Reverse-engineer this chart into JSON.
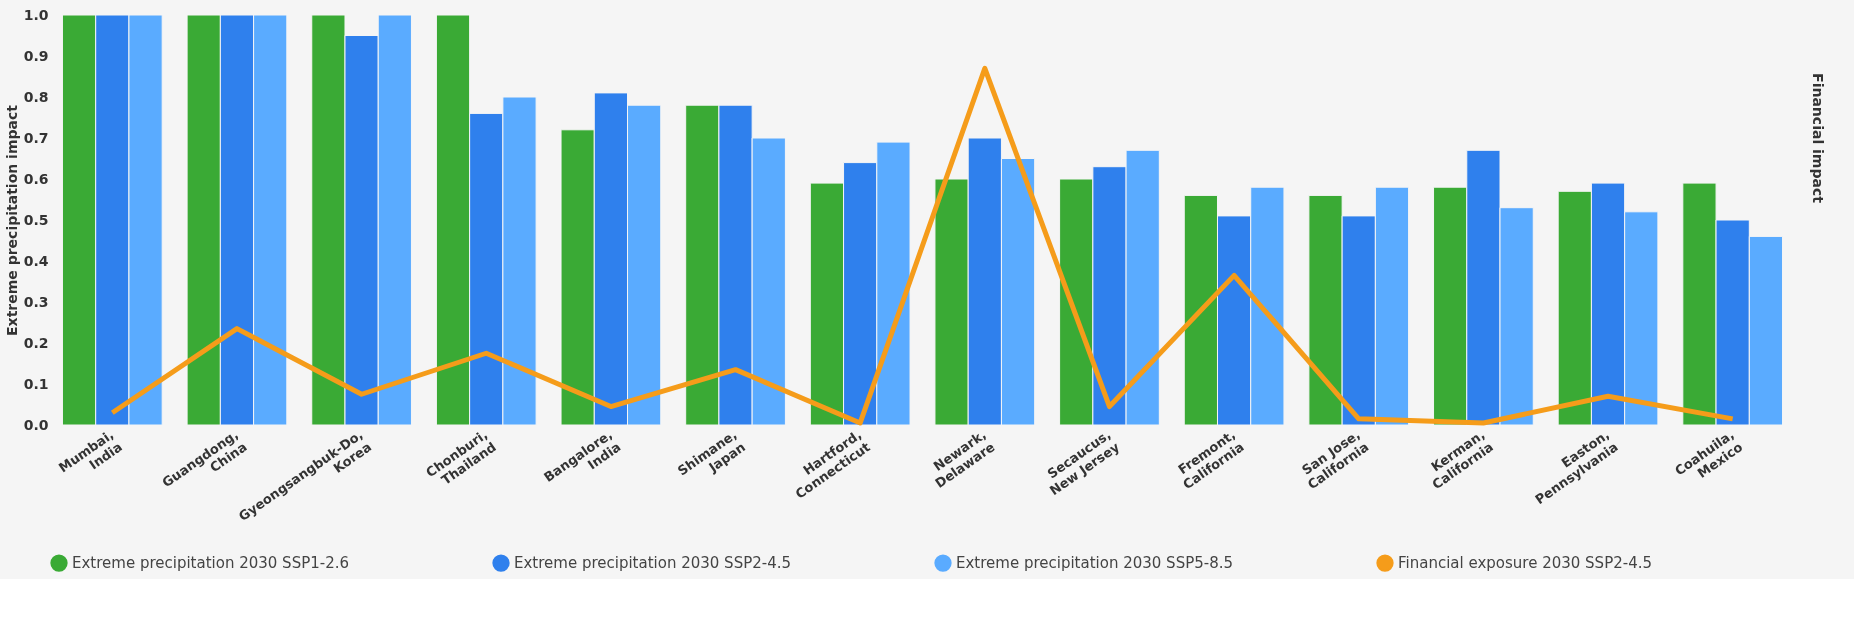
{
  "chart_data": {
    "type": "bar",
    "ylabel": "Extreme precipitation impact",
    "y2label": "Financial impact",
    "categories": [
      "Mumbai, India",
      "Guangdong, China",
      "Gyeongsangbuk-Do, Korea",
      "Chonburi, Thailand",
      "Bangalore, India",
      "Shimane, Japan",
      "Hartford, Connecticut",
      "Newark, Delaware",
      "Secaucus, New Jersey",
      "Fremont, California",
      "San Jose, California",
      "Kerman, California",
      "Easton, Pennsylvania",
      "Coahuila, Mexico"
    ],
    "series": [
      {
        "name": "Extreme precipitation 2030 SSP1-2.6",
        "color": "#3aaa35",
        "values": [
          1.0,
          1.0,
          1.0,
          1.0,
          0.72,
          0.78,
          0.59,
          0.6,
          0.6,
          0.56,
          0.56,
          0.58,
          0.57,
          0.59
        ]
      },
      {
        "name": "Extreme precipitation 2030 SSP2-4.5",
        "color": "#2f80ed",
        "values": [
          1.0,
          1.0,
          0.95,
          0.76,
          0.81,
          0.78,
          0.64,
          0.7,
          0.63,
          0.51,
          0.51,
          0.67,
          0.59,
          0.5
        ]
      },
      {
        "name": "Extreme precipitation 2030 SSP5-8.5",
        "color": "#5aabff",
        "values": [
          1.0,
          1.0,
          1.0,
          0.8,
          0.78,
          0.7,
          0.69,
          0.65,
          0.67,
          0.58,
          0.58,
          0.53,
          0.52,
          0.46
        ]
      },
      {
        "name": "Financial exposure 2030 SSP2-4.5",
        "color": "#f59c1a",
        "type": "line",
        "values": [
          0.03,
          0.235,
          0.075,
          0.175,
          0.045,
          0.135,
          0.005,
          0.87,
          0.045,
          0.365,
          0.015,
          0.005,
          0.07,
          0.015
        ]
      }
    ],
    "ylim": [
      0,
      1.0
    ],
    "yticks": [
      {
        "value": 0,
        "label": "0.0"
      },
      0.1,
      0.2,
      0.3,
      0.4,
      0.5,
      0.6,
      0.7,
      0.8,
      0.9,
      {
        "value": 1,
        "label": "1.0"
      }
    ],
    "grid": false,
    "legend": "bottom",
    "marker": "none",
    "line_style": "solid"
  }
}
